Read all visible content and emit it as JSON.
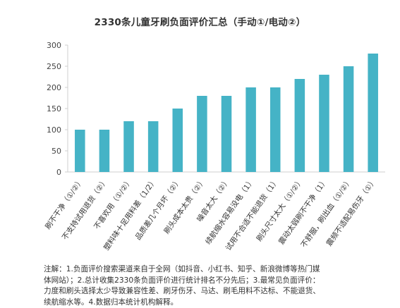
{
  "chart_data": {
    "type": "bar",
    "title": "2330条儿童牙刷负面评价汇总（手动①/电动②）",
    "categories": [
      "刷不干净（①/②）",
      "不支持试用退货（②）",
      "不喜欢用（①/②）",
      "塑料味十足用料差（1/2）",
      "品质差几个月坏（②）",
      "刷头成本太贵（②）",
      "噪音太大（②）",
      "续航缩水容易没电（1）",
      "试用不合适不能退货（1）",
      "刷头尺寸太大（①/②）",
      "震动太弱刷不干净（1）",
      "不舒服，刷出血（①/②）",
      "震频不适配易伤牙（①）"
    ],
    "values": [
      100,
      100,
      120,
      120,
      150,
      180,
      180,
      200,
      200,
      220,
      230,
      250,
      280
    ],
    "ylim": [
      0,
      300
    ],
    "yticks": [
      0,
      50,
      100,
      150,
      200,
      250,
      300
    ],
    "grid": false,
    "bar_color": "#45b3c6",
    "axis_color": "#cfcfcf"
  },
  "note_lines": [
    "注解：1.负面评价搜索渠道来自于全网（如抖音、小红书、知乎、新浪微博等热门媒",
    "体网站）；2.总计收集2330条负面评价进行统计排名不分先后；3.最常见负面评价：",
    "力度和刷头选择太少导致兼容性差、刷牙伤牙、马达、刷毛用料不达标、不能退货、",
    "续航缩水等。4.数据归本统计机构解释。"
  ]
}
